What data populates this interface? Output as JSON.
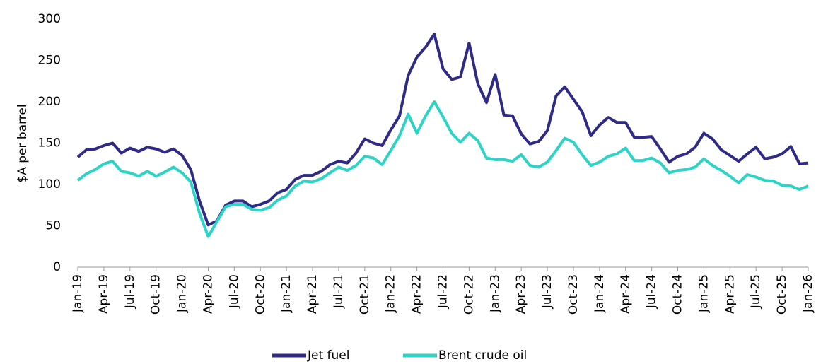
{
  "chart_data": {
    "type": "line",
    "y_label": "$A per barrel",
    "categories": [
      "Jan-19",
      null,
      null,
      "Apr-19",
      null,
      null,
      "Jul-19",
      null,
      null,
      "Oct-19",
      null,
      null,
      "Jan-20",
      null,
      null,
      "Apr-20",
      null,
      null,
      "Jul-20",
      null,
      null,
      "Oct-20",
      null,
      null,
      "Jan-21",
      null,
      null,
      "Apr-21",
      null,
      null,
      "Jul-21",
      null,
      null,
      "Oct-21",
      null,
      null,
      "Jan-22",
      null,
      null,
      "Apr-22",
      null,
      null,
      "Jul-22",
      null,
      null,
      "Oct-22",
      null,
      null,
      "Jan-23",
      null,
      null,
      "Apr-23",
      null,
      null,
      "Jul-23",
      null,
      null,
      "Oct-23",
      null,
      null,
      "Jan-24",
      null,
      null,
      "Apr-24",
      null,
      null,
      "Jul-24",
      null,
      null,
      "Oct-24",
      null,
      null,
      "Jan-25",
      null,
      null,
      "Apr-25",
      null,
      null,
      "Jul-25",
      null,
      null,
      "Oct-25",
      null,
      null,
      "Jan-26"
    ],
    "series": [
      {
        "name": "Jet fuel",
        "color": "#2e2a86",
        "values": [
          133,
          142,
          143,
          147,
          150,
          138,
          144,
          140,
          145,
          143,
          139,
          143,
          135,
          118,
          80,
          51,
          56,
          75,
          80,
          80,
          73,
          76,
          80,
          90,
          94,
          106,
          111,
          111,
          116,
          124,
          128,
          126,
          138,
          155,
          150,
          147,
          166,
          183,
          232,
          254,
          266,
          282,
          240,
          227,
          230,
          271,
          222,
          199,
          233,
          184,
          183,
          161,
          149,
          152,
          165,
          207,
          218,
          203,
          188,
          159,
          172,
          181,
          175,
          175,
          157,
          157,
          158,
          143,
          127,
          134,
          137,
          145,
          162,
          155,
          142,
          135,
          128,
          137,
          145,
          131,
          133,
          137,
          146,
          125,
          126
        ]
      },
      {
        "name": "Brent crude oil",
        "color": "#2bd4c6",
        "values": [
          105,
          113,
          118,
          125,
          128,
          116,
          114,
          110,
          116,
          110,
          115,
          121,
          114,
          103,
          65,
          37,
          55,
          73,
          76,
          76,
          70,
          69,
          72,
          81,
          86,
          98,
          104,
          103,
          107,
          114,
          121,
          117,
          123,
          134,
          132,
          124,
          141,
          159,
          185,
          162,
          183,
          200,
          182,
          162,
          151,
          162,
          153,
          132,
          130,
          130,
          128,
          136,
          123,
          121,
          127,
          141,
          156,
          151,
          136,
          123,
          127,
          134,
          137,
          144,
          129,
          129,
          132,
          126,
          114,
          117,
          118,
          121,
          131,
          123,
          117,
          110,
          102,
          112,
          109,
          105,
          104,
          99,
          98,
          94,
          98
        ]
      }
    ],
    "ylim": [
      0,
      300
    ],
    "yticks": [
      0,
      50,
      100,
      150,
      200,
      250,
      300
    ],
    "grid": false
  }
}
